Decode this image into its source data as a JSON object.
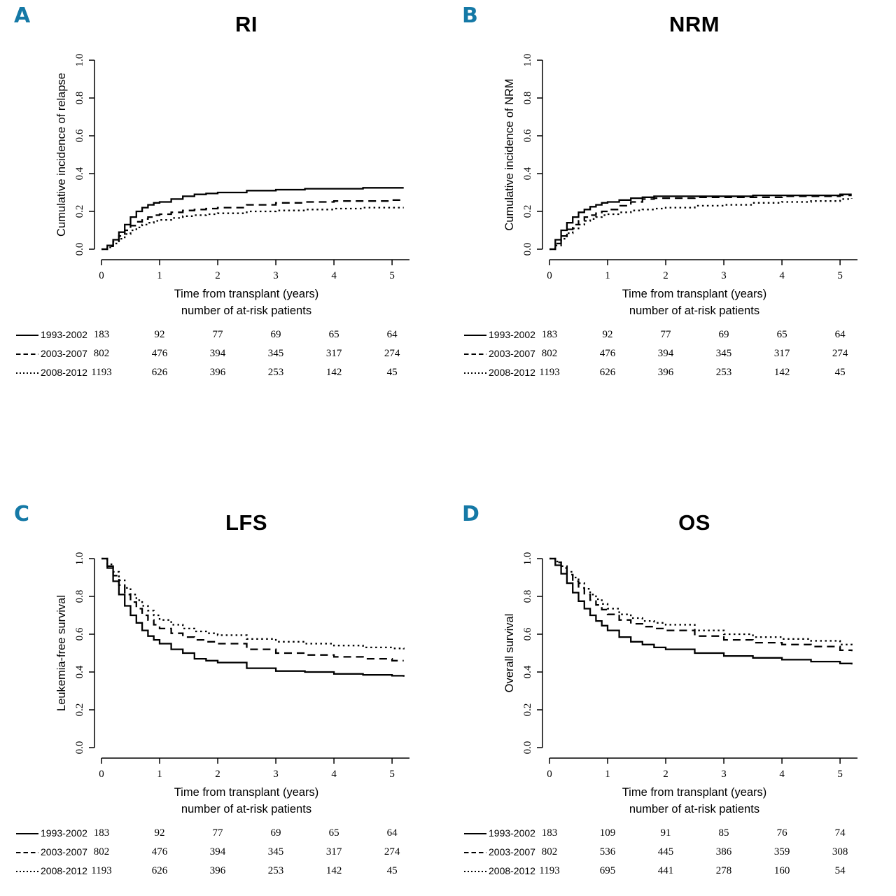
{
  "accent_color": "#1579a6",
  "chart_data": [
    {
      "type": "line",
      "panel": "A",
      "title": "RI",
      "ylabel": "Cumulative incidence of relapse",
      "xlabel": "Time from transplant (years)",
      "xlabel2": "number of at-risk patients",
      "xlim": [
        0,
        5.3
      ],
      "ylim": [
        0,
        1
      ],
      "xticks": [
        0,
        1,
        2,
        3,
        4,
        5
      ],
      "yticks": [
        0,
        0.2,
        0.4,
        0.6,
        0.8,
        1
      ],
      "ytick_labels": [
        "0.0",
        "0.2",
        "0.4",
        "0.6",
        "0.8",
        "1.0"
      ],
      "x": [
        0,
        0.1,
        0.2,
        0.3,
        0.4,
        0.5,
        0.6,
        0.7,
        0.8,
        0.9,
        1,
        1.2,
        1.4,
        1.6,
        1.8,
        2,
        2.5,
        3,
        3.5,
        4,
        4.5,
        5,
        5.2
      ],
      "series": [
        {
          "name": "1993-2002",
          "line": "solid",
          "y": [
            0,
            0.02,
            0.05,
            0.09,
            0.13,
            0.17,
            0.2,
            0.22,
            0.235,
            0.245,
            0.25,
            0.265,
            0.28,
            0.29,
            0.295,
            0.3,
            0.31,
            0.315,
            0.32,
            0.32,
            0.325,
            0.325,
            0.325
          ]
        },
        {
          "name": "2003-2007",
          "line": "dashed",
          "y": [
            0,
            0.015,
            0.04,
            0.07,
            0.1,
            0.125,
            0.145,
            0.16,
            0.17,
            0.18,
            0.185,
            0.195,
            0.205,
            0.21,
            0.215,
            0.22,
            0.235,
            0.245,
            0.25,
            0.255,
            0.255,
            0.26,
            0.26
          ]
        },
        {
          "name": "2008-2012",
          "line": "dotted",
          "y": [
            0,
            0.01,
            0.03,
            0.055,
            0.08,
            0.1,
            0.115,
            0.13,
            0.14,
            0.15,
            0.155,
            0.165,
            0.175,
            0.18,
            0.185,
            0.19,
            0.2,
            0.205,
            0.21,
            0.215,
            0.22,
            0.22,
            0.22
          ]
        }
      ],
      "at_risk": [
        {
          "name": "1993-2002",
          "line": "solid",
          "values": [
            183,
            92,
            77,
            69,
            65,
            64
          ]
        },
        {
          "name": "2003-2007",
          "line": "dashed",
          "values": [
            802,
            476,
            394,
            345,
            317,
            274
          ]
        },
        {
          "name": "2008-2012",
          "line": "dotted",
          "values": [
            1193,
            626,
            396,
            253,
            142,
            45
          ]
        }
      ]
    },
    {
      "type": "line",
      "panel": "B",
      "title": "NRM",
      "ylabel": "Cumulative incidence of NRM",
      "xlabel": "Time from transplant (years)",
      "xlabel2": "number of at-risk patients",
      "xlim": [
        0,
        5.3
      ],
      "ylim": [
        0,
        1
      ],
      "xticks": [
        0,
        1,
        2,
        3,
        4,
        5
      ],
      "yticks": [
        0,
        0.2,
        0.4,
        0.6,
        0.8,
        1
      ],
      "ytick_labels": [
        "0.0",
        "0.2",
        "0.4",
        "0.6",
        "0.8",
        "1.0"
      ],
      "x": [
        0,
        0.1,
        0.2,
        0.3,
        0.4,
        0.5,
        0.6,
        0.7,
        0.8,
        0.9,
        1,
        1.2,
        1.4,
        1.6,
        1.8,
        2,
        2.5,
        3,
        3.5,
        4,
        4.5,
        5,
        5.2
      ],
      "series": [
        {
          "name": "1993-2002",
          "line": "solid",
          "y": [
            0,
            0.05,
            0.1,
            0.14,
            0.17,
            0.195,
            0.21,
            0.225,
            0.235,
            0.245,
            0.25,
            0.26,
            0.27,
            0.275,
            0.28,
            0.28,
            0.28,
            0.28,
            0.285,
            0.285,
            0.285,
            0.29,
            0.29
          ]
        },
        {
          "name": "2003-2007",
          "line": "dashed",
          "y": [
            0,
            0.03,
            0.07,
            0.105,
            0.13,
            0.15,
            0.17,
            0.18,
            0.19,
            0.2,
            0.21,
            0.23,
            0.25,
            0.265,
            0.27,
            0.27,
            0.275,
            0.275,
            0.275,
            0.28,
            0.28,
            0.285,
            0.285
          ]
        },
        {
          "name": "2008-2012",
          "line": "dotted",
          "y": [
            0,
            0.02,
            0.055,
            0.085,
            0.11,
            0.13,
            0.15,
            0.16,
            0.17,
            0.18,
            0.185,
            0.195,
            0.205,
            0.21,
            0.215,
            0.22,
            0.23,
            0.235,
            0.245,
            0.25,
            0.255,
            0.265,
            0.27
          ]
        }
      ],
      "at_risk": [
        {
          "name": "1993-2002",
          "line": "solid",
          "values": [
            183,
            92,
            77,
            69,
            65,
            64
          ]
        },
        {
          "name": "2003-2007",
          "line": "dashed",
          "values": [
            802,
            476,
            394,
            345,
            317,
            274
          ]
        },
        {
          "name": "2008-2012",
          "line": "dotted",
          "values": [
            1193,
            626,
            396,
            253,
            142,
            45
          ]
        }
      ]
    },
    {
      "type": "line",
      "panel": "C",
      "title": "LFS",
      "ylabel": "Leukemia-free survival",
      "xlabel": "Time from transplant (years)",
      "xlabel2": "number of at-risk patients",
      "xlim": [
        0,
        5.3
      ],
      "ylim": [
        0,
        1
      ],
      "xticks": [
        0,
        1,
        2,
        3,
        4,
        5
      ],
      "yticks": [
        0,
        0.2,
        0.4,
        0.6,
        0.8,
        1
      ],
      "ytick_labels": [
        "0.0",
        "0.2",
        "0.4",
        "0.6",
        "0.8",
        "1.0"
      ],
      "x": [
        0,
        0.1,
        0.2,
        0.3,
        0.4,
        0.5,
        0.6,
        0.7,
        0.8,
        0.9,
        1,
        1.2,
        1.4,
        1.6,
        1.8,
        2,
        2.5,
        3,
        3.5,
        4,
        4.5,
        5,
        5.2
      ],
      "series": [
        {
          "name": "1993-2002",
          "line": "solid",
          "y": [
            1,
            0.95,
            0.88,
            0.81,
            0.75,
            0.7,
            0.66,
            0.62,
            0.59,
            0.57,
            0.55,
            0.52,
            0.5,
            0.47,
            0.46,
            0.45,
            0.42,
            0.405,
            0.4,
            0.39,
            0.385,
            0.38,
            0.375
          ]
        },
        {
          "name": "2003-2007",
          "line": "dashed",
          "y": [
            1,
            0.96,
            0.91,
            0.86,
            0.81,
            0.77,
            0.735,
            0.7,
            0.675,
            0.65,
            0.63,
            0.605,
            0.585,
            0.57,
            0.56,
            0.55,
            0.52,
            0.5,
            0.49,
            0.48,
            0.47,
            0.46,
            0.46
          ]
        },
        {
          "name": "2008-2012",
          "line": "dotted",
          "y": [
            1,
            0.97,
            0.93,
            0.885,
            0.845,
            0.81,
            0.78,
            0.75,
            0.725,
            0.7,
            0.675,
            0.65,
            0.63,
            0.615,
            0.605,
            0.595,
            0.575,
            0.56,
            0.55,
            0.54,
            0.53,
            0.525,
            0.52
          ]
        }
      ],
      "at_risk": [
        {
          "name": "1993-2002",
          "line": "solid",
          "values": [
            183,
            92,
            77,
            69,
            65,
            64
          ]
        },
        {
          "name": "2003-2007",
          "line": "dashed",
          "values": [
            802,
            476,
            394,
            345,
            317,
            274
          ]
        },
        {
          "name": "2008-2012",
          "line": "dotted",
          "values": [
            1193,
            626,
            396,
            253,
            142,
            45
          ]
        }
      ]
    },
    {
      "type": "line",
      "panel": "D",
      "title": "OS",
      "ylabel": "Overall survival",
      "xlabel": "Time from transplant (years)",
      "xlabel2": "number of at-risk patients",
      "xlim": [
        0,
        5.3
      ],
      "ylim": [
        0,
        1
      ],
      "xticks": [
        0,
        1,
        2,
        3,
        4,
        5
      ],
      "yticks": [
        0,
        0.2,
        0.4,
        0.6,
        0.8,
        1
      ],
      "ytick_labels": [
        "0.0",
        "0.2",
        "0.4",
        "0.6",
        "0.8",
        "1.0"
      ],
      "x": [
        0,
        0.1,
        0.2,
        0.3,
        0.4,
        0.5,
        0.6,
        0.7,
        0.8,
        0.9,
        1,
        1.2,
        1.4,
        1.6,
        1.8,
        2,
        2.5,
        3,
        3.5,
        4,
        4.5,
        5,
        5.2
      ],
      "series": [
        {
          "name": "1993-2002",
          "line": "solid",
          "y": [
            1,
            0.965,
            0.92,
            0.87,
            0.82,
            0.775,
            0.735,
            0.7,
            0.67,
            0.645,
            0.62,
            0.585,
            0.56,
            0.545,
            0.53,
            0.52,
            0.5,
            0.485,
            0.475,
            0.465,
            0.455,
            0.445,
            0.44
          ]
        },
        {
          "name": "2003-2007",
          "line": "dashed",
          "y": [
            1,
            0.98,
            0.95,
            0.915,
            0.88,
            0.845,
            0.81,
            0.78,
            0.755,
            0.73,
            0.705,
            0.675,
            0.655,
            0.64,
            0.63,
            0.62,
            0.59,
            0.57,
            0.555,
            0.545,
            0.535,
            0.515,
            0.51
          ]
        },
        {
          "name": "2008-2012",
          "line": "dotted",
          "y": [
            1,
            0.985,
            0.96,
            0.93,
            0.9,
            0.87,
            0.84,
            0.81,
            0.785,
            0.76,
            0.735,
            0.705,
            0.685,
            0.67,
            0.66,
            0.65,
            0.62,
            0.6,
            0.585,
            0.575,
            0.565,
            0.545,
            0.535
          ]
        }
      ],
      "at_risk": [
        {
          "name": "1993-2002",
          "line": "solid",
          "values": [
            183,
            109,
            91,
            85,
            76,
            74
          ]
        },
        {
          "name": "2003-2007",
          "line": "dashed",
          "values": [
            802,
            536,
            445,
            386,
            359,
            308
          ]
        },
        {
          "name": "2008-2012",
          "line": "dotted",
          "values": [
            1193,
            695,
            441,
            278,
            160,
            54
          ]
        }
      ]
    }
  ]
}
